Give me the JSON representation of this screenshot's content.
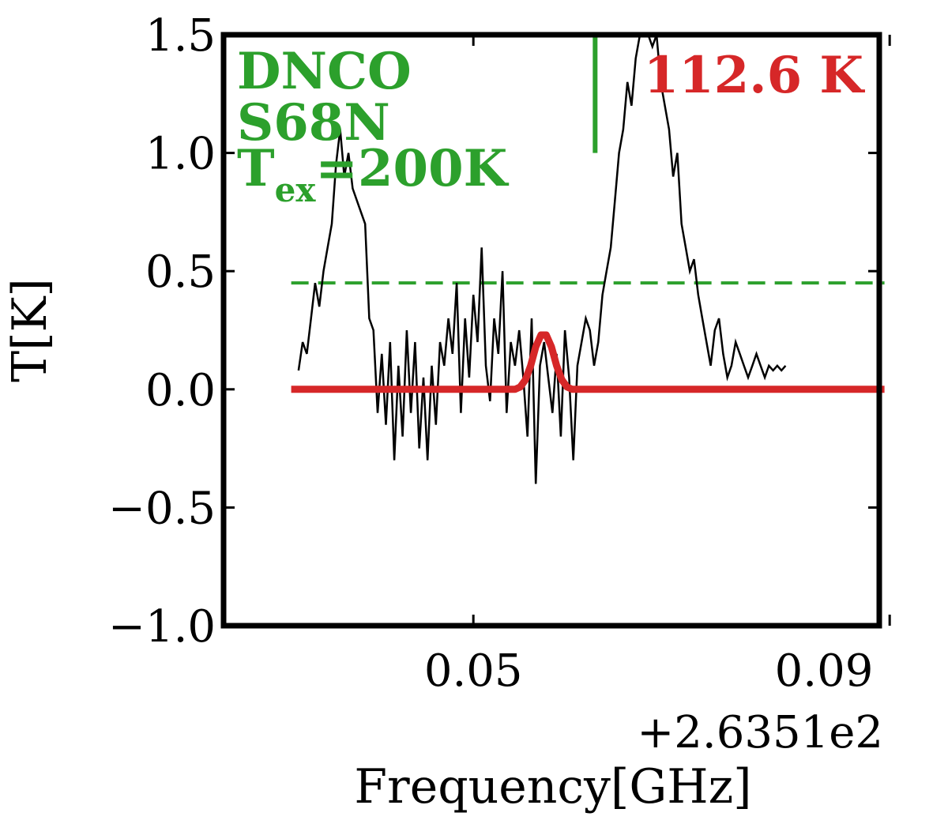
{
  "chart_data": {
    "type": "line",
    "xlabel": "Frequency[GHz]",
    "ylabel": "T[K]",
    "x_offset_label": "+2.6351e2",
    "xlim": [
      0.026,
      0.089
    ],
    "ylim": [
      -1.0,
      1.5
    ],
    "x_ticks": [
      0.05,
      0.09
    ],
    "x_tick_labels": [
      "0.05",
      "0.09"
    ],
    "y_ticks": [
      1.5,
      1.0,
      0.5,
      0.0,
      -0.5,
      -1.0
    ],
    "y_tick_labels": [
      "1.5",
      "1.0",
      "0.5",
      "0.0",
      "−0.5",
      "−1.0"
    ],
    "grid": false,
    "annotations": {
      "molecule": "DNCO",
      "source": "S68N",
      "tex_symbol": "T",
      "tex_subscript": "ex",
      "tex_value": "=200K",
      "fit_temperature": "112.6 K"
    },
    "colors": {
      "observed": "#000000",
      "model": "#d62728",
      "threshold": "#2ca02c",
      "marker": "#2ca02c"
    },
    "series": [
      {
        "role": "observed",
        "x": [
          0.0332,
          0.0336,
          0.034,
          0.0344,
          0.0348,
          0.0352,
          0.0356,
          0.036,
          0.0364,
          0.0368,
          0.0372,
          0.0376,
          0.038,
          0.0384,
          0.0388,
          0.0392,
          0.0396,
          0.04,
          0.0404,
          0.0408,
          0.0412,
          0.0416,
          0.042,
          0.0424,
          0.0428,
          0.0432,
          0.0436,
          0.044,
          0.0444,
          0.0448,
          0.0452,
          0.0456,
          0.046,
          0.0464,
          0.0468,
          0.0472,
          0.0476,
          0.048,
          0.0484,
          0.0488,
          0.0492,
          0.0496,
          0.05,
          0.0504,
          0.0508,
          0.0512,
          0.0516,
          0.052,
          0.0524,
          0.0528,
          0.0532,
          0.0536,
          0.054,
          0.0544,
          0.0548,
          0.0552,
          0.0556,
          0.056,
          0.0564,
          0.0568,
          0.0572,
          0.0576,
          0.058,
          0.0584,
          0.0588,
          0.0592,
          0.0596,
          0.06,
          0.0604,
          0.0608,
          0.0612,
          0.0616,
          0.062,
          0.0624,
          0.0628,
          0.0632,
          0.0636,
          0.064,
          0.0644,
          0.0648,
          0.0652,
          0.0656,
          0.066,
          0.0664,
          0.0668,
          0.0672,
          0.0676,
          0.068,
          0.0684,
          0.0688,
          0.0692,
          0.0696,
          0.07,
          0.0704,
          0.0708,
          0.0712,
          0.0716,
          0.072,
          0.0724,
          0.0728,
          0.0732,
          0.0736,
          0.074,
          0.0744,
          0.0748,
          0.0752,
          0.0756,
          0.076,
          0.0764,
          0.0768,
          0.0772,
          0.0776,
          0.078,
          0.0784,
          0.0788,
          0.0792,
          0.0796,
          0.08
        ],
        "y": [
          0.08,
          0.2,
          0.15,
          0.3,
          0.45,
          0.35,
          0.5,
          0.6,
          0.7,
          0.95,
          1.1,
          0.9,
          1.0,
          0.85,
          0.8,
          0.75,
          0.7,
          0.3,
          0.25,
          -0.1,
          0.15,
          -0.15,
          0.2,
          -0.3,
          0.1,
          -0.2,
          0.25,
          -0.1,
          0.2,
          -0.25,
          0.05,
          -0.3,
          0.1,
          -0.15,
          0.2,
          0.1,
          0.3,
          0.15,
          0.45,
          -0.1,
          0.3,
          0.05,
          0.4,
          0.2,
          0.6,
          0.1,
          -0.05,
          0.3,
          0.15,
          0.5,
          -0.1,
          0.2,
          0.1,
          0.25,
          0.05,
          -0.2,
          0.3,
          -0.4,
          0.1,
          0.2,
          0.05,
          -0.1,
          0.15,
          -0.2,
          0.25,
          0.05,
          -0.3,
          0.1,
          0.2,
          0.3,
          0.25,
          0.1,
          0.2,
          0.4,
          0.5,
          0.6,
          0.8,
          1.0,
          1.1,
          1.3,
          1.2,
          1.4,
          1.55,
          1.5,
          1.6,
          1.45,
          1.5,
          1.3,
          1.2,
          1.1,
          0.9,
          1.0,
          0.7,
          0.6,
          0.5,
          0.55,
          0.4,
          0.3,
          0.2,
          0.1,
          0.25,
          0.3,
          0.15,
          0.05,
          0.1,
          0.2,
          0.15,
          0.1,
          0.05,
          0.1,
          0.15,
          0.1,
          0.05,
          0.1,
          0.08,
          0.1,
          0.08,
          0.1
        ]
      },
      {
        "role": "model",
        "x": [
          0.0325,
          0.054,
          0.0545,
          0.055,
          0.0555,
          0.056,
          0.0565,
          0.057,
          0.0575,
          0.058,
          0.0585,
          0.059,
          0.0595,
          0.0895
        ],
        "y": [
          0.0,
          0.0,
          0.01,
          0.04,
          0.1,
          0.18,
          0.23,
          0.23,
          0.18,
          0.1,
          0.04,
          0.01,
          0.0,
          0.0
        ]
      }
    ],
    "threshold_y": 0.45,
    "threshold_x": [
      0.0325,
      0.0895
    ],
    "marker_x": 0.0617,
    "marker_y": [
      1.0,
      1.5
    ]
  }
}
